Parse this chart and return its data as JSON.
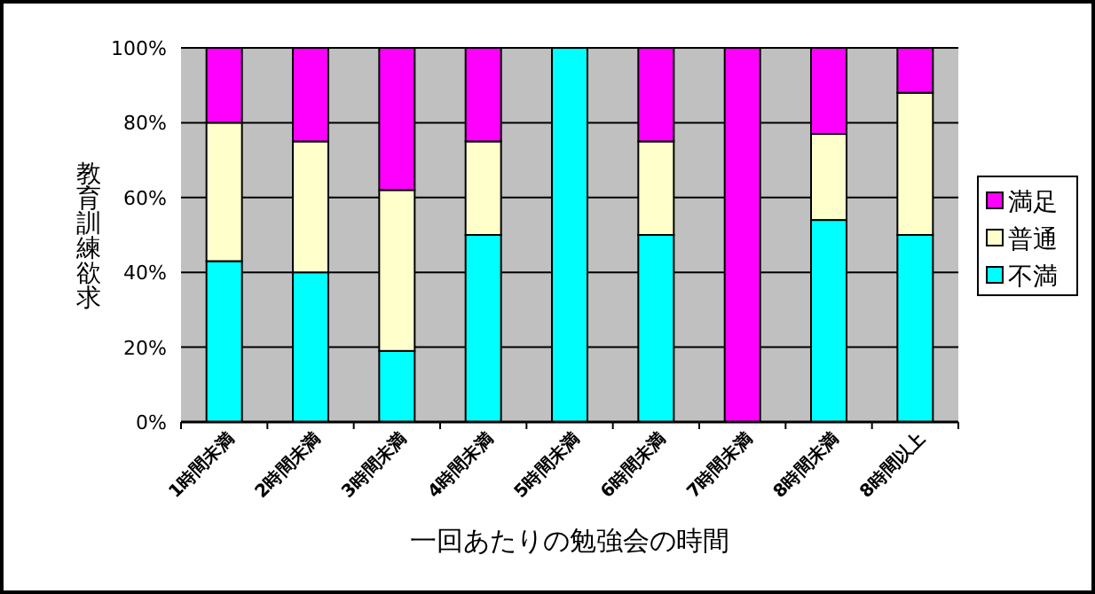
{
  "chart_data": {
    "type": "bar",
    "stacked": true,
    "xlabel": "一回あたりの勉強会の時間",
    "ylabel": "教育訓練欲求",
    "categories": [
      "1時間未満",
      "2時間未満",
      "3時間未満",
      "4時間未満",
      "5時間未満",
      "6時間未満",
      "7時間未満",
      "8時間未満",
      "8時間以上"
    ],
    "series": [
      {
        "name": "不満",
        "color": "#00ffff",
        "values": [
          43,
          40,
          19,
          50,
          100,
          50,
          0,
          54,
          50
        ]
      },
      {
        "name": "普通",
        "color": "#ffffcc",
        "values": [
          37,
          35,
          43,
          25,
          0,
          25,
          0,
          23,
          38
        ]
      },
      {
        "name": "満足",
        "color": "#ff00ff",
        "values": [
          20,
          25,
          38,
          25,
          0,
          25,
          100,
          23,
          12
        ]
      }
    ],
    "ylim": [
      0,
      100
    ],
    "yticks": [
      {
        "value": 0,
        "label": "0%"
      },
      {
        "value": 20,
        "label": "20%"
      },
      {
        "value": 40,
        "label": "40%"
      },
      {
        "value": 60,
        "label": "60%"
      },
      {
        "value": 80,
        "label": "80%"
      },
      {
        "value": 100,
        "label": "100%"
      }
    ],
    "grid": "y",
    "legend": "right"
  }
}
